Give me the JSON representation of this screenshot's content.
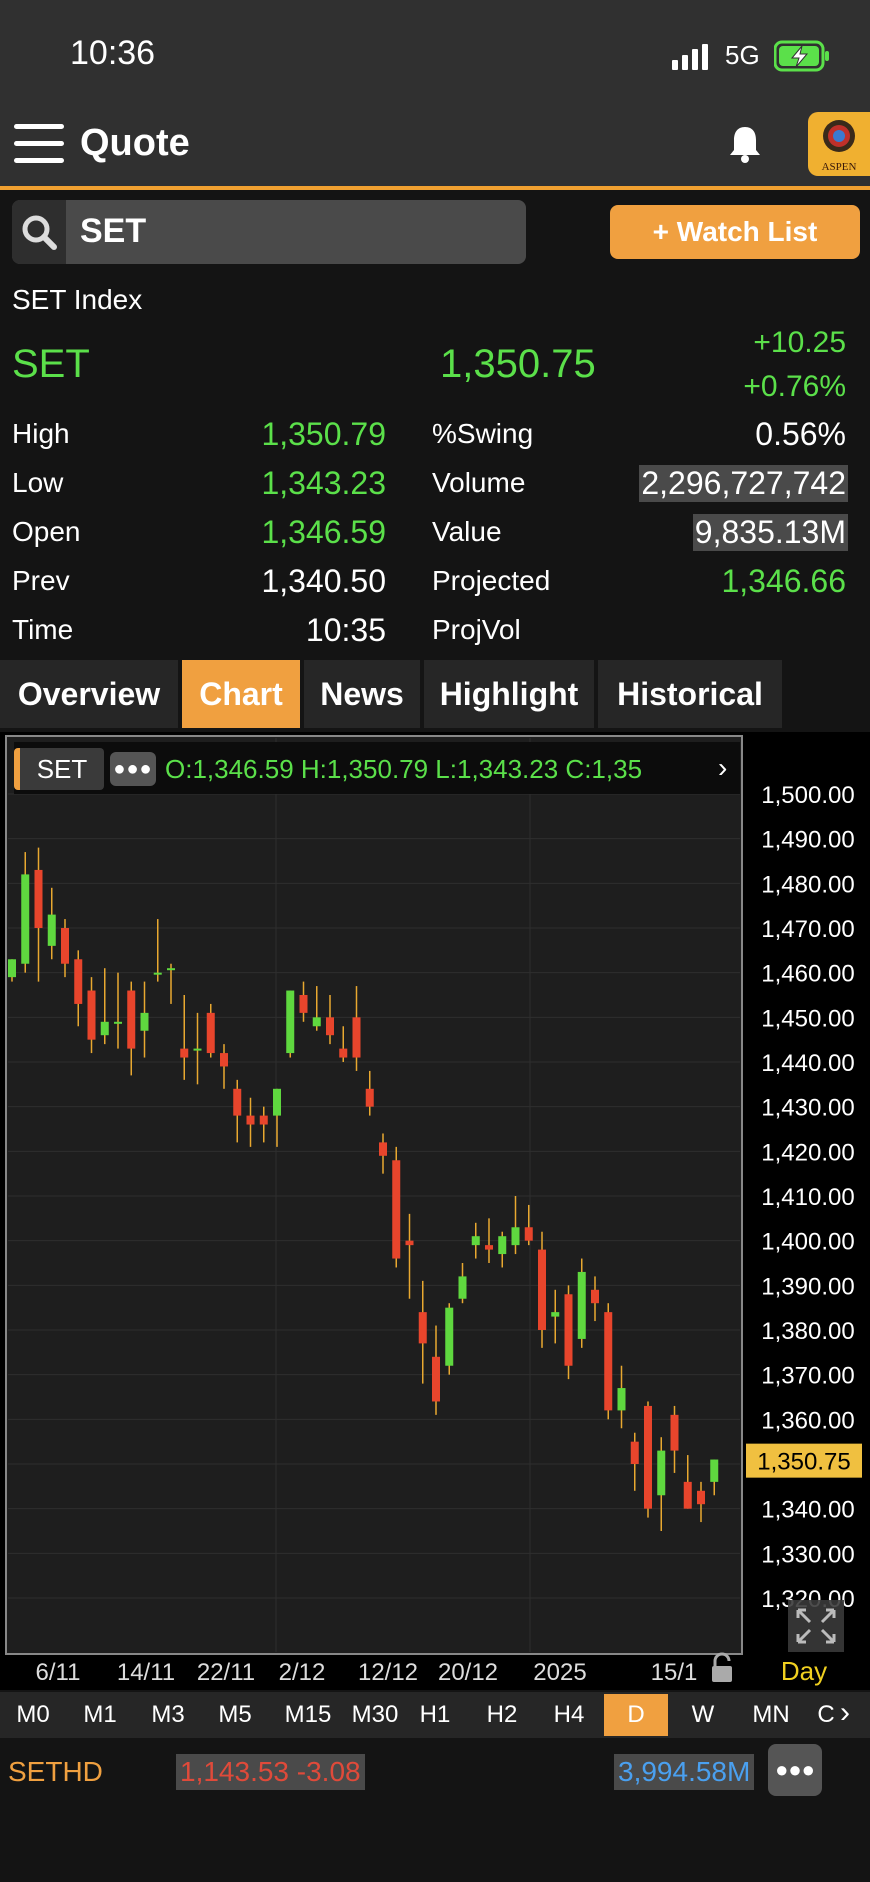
{
  "status_bar": {
    "time": "10:36",
    "network": "5G"
  },
  "header": {
    "title": "Quote",
    "logo_text": "ASPEN"
  },
  "search": {
    "value": "SET"
  },
  "watch_button": {
    "label": "+ Watch List"
  },
  "quote": {
    "index_name": "SET Index",
    "symbol": "SET",
    "last": "1,350.75",
    "change": "+10.25",
    "change_pct": "+0.76%",
    "stats_left": [
      {
        "label": "High",
        "value": "1,350.79",
        "color": "green"
      },
      {
        "label": "Low",
        "value": "1,343.23",
        "color": "green"
      },
      {
        "label": "Open",
        "value": "1,346.59",
        "color": "green"
      },
      {
        "label": "Prev",
        "value": "1,340.50",
        "color": "white"
      },
      {
        "label": "Time",
        "value": "10:35",
        "color": "white"
      }
    ],
    "stats_right": [
      {
        "label": "%Swing",
        "value": "0.56%",
        "color": "white",
        "highlight": false
      },
      {
        "label": "Volume",
        "value": "2,296,727,742",
        "color": "white",
        "highlight": true
      },
      {
        "label": "Value",
        "value": "9,835.13M",
        "color": "white",
        "highlight": true
      },
      {
        "label": "Projected",
        "value": "1,346.66",
        "color": "green",
        "highlight": false
      },
      {
        "label": "ProjVol",
        "value": "",
        "color": "white",
        "highlight": false
      }
    ]
  },
  "tabs": [
    "Overview",
    "Chart",
    "News",
    "Highlight",
    "Historical"
  ],
  "active_tab": "Chart",
  "chart_header": {
    "symbol": "SET",
    "ohlc": "O:1,346.59  H:1,350.79  L:1,343.23  C:1,35"
  },
  "chart_data": {
    "type": "candlestick",
    "y_ticks": [
      "1,500.00",
      "1,490.00",
      "1,480.00",
      "1,470.00",
      "1,460.00",
      "1,450.00",
      "1,440.00",
      "1,430.00",
      "1,420.00",
      "1,410.00",
      "1,400.00",
      "1,390.00",
      "1,380.00",
      "1,370.00",
      "1,360.00",
      "1,350.00",
      "1,340.00",
      "1,330.00",
      "1,320.00"
    ],
    "ylim": [
      1320,
      1500
    ],
    "x_labels": [
      "6/11",
      "14/11",
      "22/11",
      "2/12",
      "12/12",
      "20/12",
      "2025",
      "15/1"
    ],
    "last_price_label": "1,350.75",
    "last_price": 1350.75,
    "period_label": "Day",
    "colors": {
      "up": "#5fd83f",
      "down": "#e8452c",
      "wick": "#e8a830"
    },
    "candles": [
      {
        "o": 1459,
        "h": 1463,
        "l": 1458,
        "c": 1463
      },
      {
        "o": 1462,
        "h": 1487,
        "l": 1460,
        "c": 1482
      },
      {
        "o": 1483,
        "h": 1488,
        "l": 1458,
        "c": 1470
      },
      {
        "o": 1466,
        "h": 1479,
        "l": 1463,
        "c": 1473
      },
      {
        "o": 1470,
        "h": 1472,
        "l": 1459,
        "c": 1462
      },
      {
        "o": 1463,
        "h": 1465,
        "l": 1448,
        "c": 1453
      },
      {
        "o": 1456,
        "h": 1459,
        "l": 1442,
        "c": 1445
      },
      {
        "o": 1446,
        "h": 1461,
        "l": 1444,
        "c": 1449
      },
      {
        "o": 1449,
        "h": 1460,
        "l": 1443,
        "c": 1449
      },
      {
        "o": 1456,
        "h": 1458,
        "l": 1437,
        "c": 1443
      },
      {
        "o": 1447,
        "h": 1458,
        "l": 1441,
        "c": 1451
      },
      {
        "o": 1460,
        "h": 1472,
        "l": 1458,
        "c": 1460
      },
      {
        "o": 1461,
        "h": 1462,
        "l": 1453,
        "c": 1461
      },
      {
        "o": 1443,
        "h": 1455,
        "l": 1436,
        "c": 1441
      },
      {
        "o": 1443,
        "h": 1451,
        "l": 1435,
        "c": 1443
      },
      {
        "o": 1451,
        "h": 1453,
        "l": 1441,
        "c": 1442
      },
      {
        "o": 1442,
        "h": 1444,
        "l": 1434,
        "c": 1439
      },
      {
        "o": 1434,
        "h": 1436,
        "l": 1422,
        "c": 1428
      },
      {
        "o": 1428,
        "h": 1432,
        "l": 1421,
        "c": 1426
      },
      {
        "o": 1428,
        "h": 1430,
        "l": 1422,
        "c": 1426
      },
      {
        "o": 1428,
        "h": 1434,
        "l": 1421,
        "c": 1434
      },
      {
        "o": 1442,
        "h": 1456,
        "l": 1441,
        "c": 1456
      },
      {
        "o": 1455,
        "h": 1458,
        "l": 1449,
        "c": 1451
      },
      {
        "o": 1448,
        "h": 1457,
        "l": 1447,
        "c": 1450
      },
      {
        "o": 1450,
        "h": 1455,
        "l": 1444,
        "c": 1446
      },
      {
        "o": 1443,
        "h": 1448,
        "l": 1440,
        "c": 1441
      },
      {
        "o": 1450,
        "h": 1457,
        "l": 1438,
        "c": 1441
      },
      {
        "o": 1434,
        "h": 1438,
        "l": 1428,
        "c": 1430
      },
      {
        "o": 1422,
        "h": 1424,
        "l": 1415,
        "c": 1419
      },
      {
        "o": 1418,
        "h": 1421,
        "l": 1394,
        "c": 1396
      },
      {
        "o": 1400,
        "h": 1406,
        "l": 1387,
        "c": 1399
      },
      {
        "o": 1384,
        "h": 1391,
        "l": 1368,
        "c": 1377
      },
      {
        "o": 1374,
        "h": 1381,
        "l": 1361,
        "c": 1364
      },
      {
        "o": 1372,
        "h": 1386,
        "l": 1370,
        "c": 1385
      },
      {
        "o": 1387,
        "h": 1395,
        "l": 1386,
        "c": 1392
      },
      {
        "o": 1399,
        "h": 1404,
        "l": 1396,
        "c": 1401
      },
      {
        "o": 1399,
        "h": 1405,
        "l": 1395,
        "c": 1398
      },
      {
        "o": 1397,
        "h": 1402,
        "l": 1394,
        "c": 1401
      },
      {
        "o": 1399,
        "h": 1410,
        "l": 1397,
        "c": 1403
      },
      {
        "o": 1403,
        "h": 1408,
        "l": 1399,
        "c": 1400
      },
      {
        "o": 1398,
        "h": 1402,
        "l": 1376,
        "c": 1380
      },
      {
        "o": 1383,
        "h": 1389,
        "l": 1377,
        "c": 1384
      },
      {
        "o": 1388,
        "h": 1390,
        "l": 1369,
        "c": 1372
      },
      {
        "o": 1378,
        "h": 1396,
        "l": 1376,
        "c": 1393
      },
      {
        "o": 1389,
        "h": 1392,
        "l": 1382,
        "c": 1386
      },
      {
        "o": 1384,
        "h": 1386,
        "l": 1360,
        "c": 1362
      },
      {
        "o": 1362,
        "h": 1372,
        "l": 1358,
        "c": 1367
      },
      {
        "o": 1355,
        "h": 1357,
        "l": 1344,
        "c": 1350
      },
      {
        "o": 1363,
        "h": 1364,
        "l": 1338,
        "c": 1340
      },
      {
        "o": 1343,
        "h": 1356,
        "l": 1335,
        "c": 1353
      },
      {
        "o": 1361,
        "h": 1363,
        "l": 1348,
        "c": 1353
      },
      {
        "o": 1346,
        "h": 1352,
        "l": 1340,
        "c": 1340
      },
      {
        "o": 1344,
        "h": 1346,
        "l": 1337,
        "c": 1341
      },
      {
        "o": 1346,
        "h": 1351,
        "l": 1343,
        "c": 1351
      }
    ]
  },
  "timeframes": [
    "M0",
    "M1",
    "M3",
    "M5",
    "M15",
    "M30",
    "H1",
    "H2",
    "H4",
    "D",
    "W",
    "MN",
    "C"
  ],
  "active_timeframe": "D",
  "ticker": {
    "symbol": "SETHD",
    "price": "1,143.53 -3.08",
    "value": "3,994.58M"
  }
}
